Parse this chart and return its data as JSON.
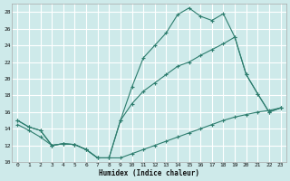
{
  "xlabel": "Humidex (Indice chaleur)",
  "background_color": "#ceeaea",
  "grid_color": "#ffffff",
  "line_color": "#2d7d6e",
  "xlim": [
    -0.5,
    23.5
  ],
  "ylim": [
    10,
    29
  ],
  "yticks": [
    10,
    12,
    14,
    16,
    18,
    20,
    22,
    24,
    26,
    28
  ],
  "xticks": [
    0,
    1,
    2,
    3,
    4,
    5,
    6,
    7,
    8,
    9,
    10,
    11,
    12,
    13,
    14,
    15,
    16,
    17,
    18,
    19,
    20,
    21,
    22,
    23
  ],
  "series_bottom_x": [
    0,
    1,
    2,
    3,
    4,
    5,
    6,
    7,
    8,
    9,
    10,
    11,
    12,
    13,
    14,
    15,
    16,
    17,
    18,
    19,
    20,
    21,
    22,
    23
  ],
  "series_bottom_y": [
    14.5,
    13.8,
    13.0,
    12.0,
    12.2,
    12.1,
    11.5,
    10.5,
    10.5,
    10.5,
    11.0,
    11.5,
    12.0,
    12.5,
    13.0,
    13.5,
    14.0,
    14.5,
    15.0,
    15.4,
    15.7,
    16.0,
    16.2,
    16.5
  ],
  "series_mid_x": [
    0,
    1,
    2,
    3,
    4,
    5,
    6,
    7,
    8,
    9,
    10,
    11,
    12,
    13,
    14,
    15,
    16,
    17,
    18,
    19,
    20,
    21,
    22,
    23
  ],
  "series_mid_y": [
    15.0,
    14.2,
    13.8,
    12.0,
    12.2,
    12.1,
    11.5,
    10.5,
    10.5,
    15.0,
    17.0,
    18.5,
    19.5,
    20.5,
    21.5,
    22.0,
    22.8,
    23.5,
    24.2,
    25.0,
    20.5,
    18.2,
    16.0,
    16.5
  ],
  "series_top_x": [
    0,
    1,
    2,
    3,
    4,
    5,
    6,
    7,
    8,
    9,
    10,
    11,
    12,
    13,
    14,
    15,
    16,
    17,
    18,
    19,
    20,
    21,
    22,
    23
  ],
  "series_top_y": [
    15.0,
    14.2,
    13.8,
    12.0,
    12.2,
    12.1,
    11.5,
    10.5,
    10.5,
    15.0,
    19.0,
    22.5,
    24.0,
    25.5,
    27.7,
    28.5,
    27.5,
    27.0,
    27.8,
    25.0,
    20.5,
    18.2,
    16.0,
    16.5
  ]
}
